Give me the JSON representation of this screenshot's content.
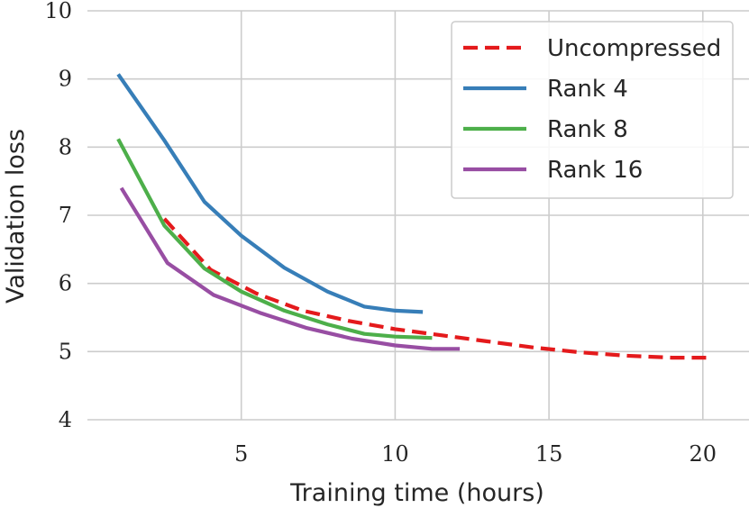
{
  "chart_data": {
    "type": "line",
    "xlabel": "Training time (hours)",
    "ylabel": "Validation loss",
    "xlim": [
      0,
      21.5
    ],
    "ylim": [
      4,
      10
    ],
    "xticks": [
      5,
      10,
      15,
      20
    ],
    "yticks": [
      4,
      5,
      6,
      7,
      8,
      9,
      10
    ],
    "grid": true,
    "legend_position": "top-right",
    "series": [
      {
        "name": "Uncompressed",
        "color": "#e41a1c",
        "style": "dashed",
        "points": [
          [
            2.5,
            6.95
          ],
          [
            4.0,
            6.2
          ],
          [
            5.5,
            5.85
          ],
          [
            7.0,
            5.6
          ],
          [
            8.5,
            5.45
          ],
          [
            10.0,
            5.33
          ],
          [
            11.5,
            5.24
          ],
          [
            13.0,
            5.15
          ],
          [
            14.5,
            5.06
          ],
          [
            16.0,
            4.99
          ],
          [
            17.5,
            4.94
          ],
          [
            19.0,
            4.91
          ],
          [
            20.3,
            4.91
          ]
        ]
      },
      {
        "name": "Rank 4",
        "color": "#377eb8",
        "style": "solid",
        "points": [
          [
            1.0,
            9.07
          ],
          [
            2.5,
            8.1
          ],
          [
            3.8,
            7.2
          ],
          [
            5.0,
            6.7
          ],
          [
            6.4,
            6.23
          ],
          [
            7.8,
            5.88
          ],
          [
            9.0,
            5.66
          ],
          [
            10.0,
            5.6
          ],
          [
            10.9,
            5.58
          ]
        ]
      },
      {
        "name": "Rank 8",
        "color": "#4daf4a",
        "style": "solid",
        "points": [
          [
            1.0,
            8.12
          ],
          [
            2.5,
            6.85
          ],
          [
            3.8,
            6.22
          ],
          [
            5.0,
            5.88
          ],
          [
            6.4,
            5.6
          ],
          [
            7.8,
            5.4
          ],
          [
            9.0,
            5.26
          ],
          [
            10.0,
            5.22
          ],
          [
            11.2,
            5.2
          ]
        ]
      },
      {
        "name": "Rank 16",
        "color": "#984ea3",
        "style": "solid",
        "points": [
          [
            1.1,
            7.4
          ],
          [
            2.6,
            6.3
          ],
          [
            4.1,
            5.83
          ],
          [
            5.6,
            5.57
          ],
          [
            7.1,
            5.35
          ],
          [
            8.6,
            5.19
          ],
          [
            10.0,
            5.09
          ],
          [
            11.2,
            5.04
          ],
          [
            12.1,
            5.04
          ]
        ]
      }
    ]
  }
}
